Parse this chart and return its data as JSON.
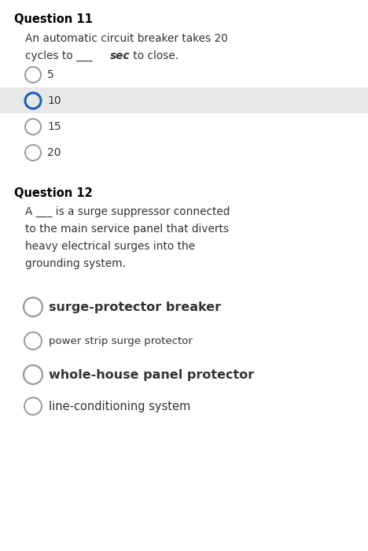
{
  "bg_color": "#ffffff",
  "q11_header": "Question 11",
  "q11_text_line1": "An automatic circuit breaker takes 20",
  "q11_options": [
    "5",
    "10",
    "15",
    "20"
  ],
  "q11_selected": 1,
  "q11_highlight_color": "#e8e8e8",
  "q12_header": "Question 12",
  "q12_text_lines": [
    "A ___ is a surge suppressor connected",
    "to the main service panel that diverts",
    "heavy electrical surges into the",
    "grounding system."
  ],
  "q12_options": [
    "surge-protector breaker",
    "power strip surge protector",
    "whole-house panel protector",
    "line-conditioning system"
  ],
  "q12_selected": -1,
  "circle_color_normal": "#999999",
  "circle_color_selected": "#1a5fb4",
  "text_color": "#333333",
  "header_color": "#000000",
  "font_size_header": 10.5,
  "font_size_body": 9.8,
  "font_size_options_q11": 10.0,
  "font_size_options_q12_bold": 11.0,
  "font_size_options_q12_small": 9.8,
  "font_size_options_q12_large": 11.0
}
